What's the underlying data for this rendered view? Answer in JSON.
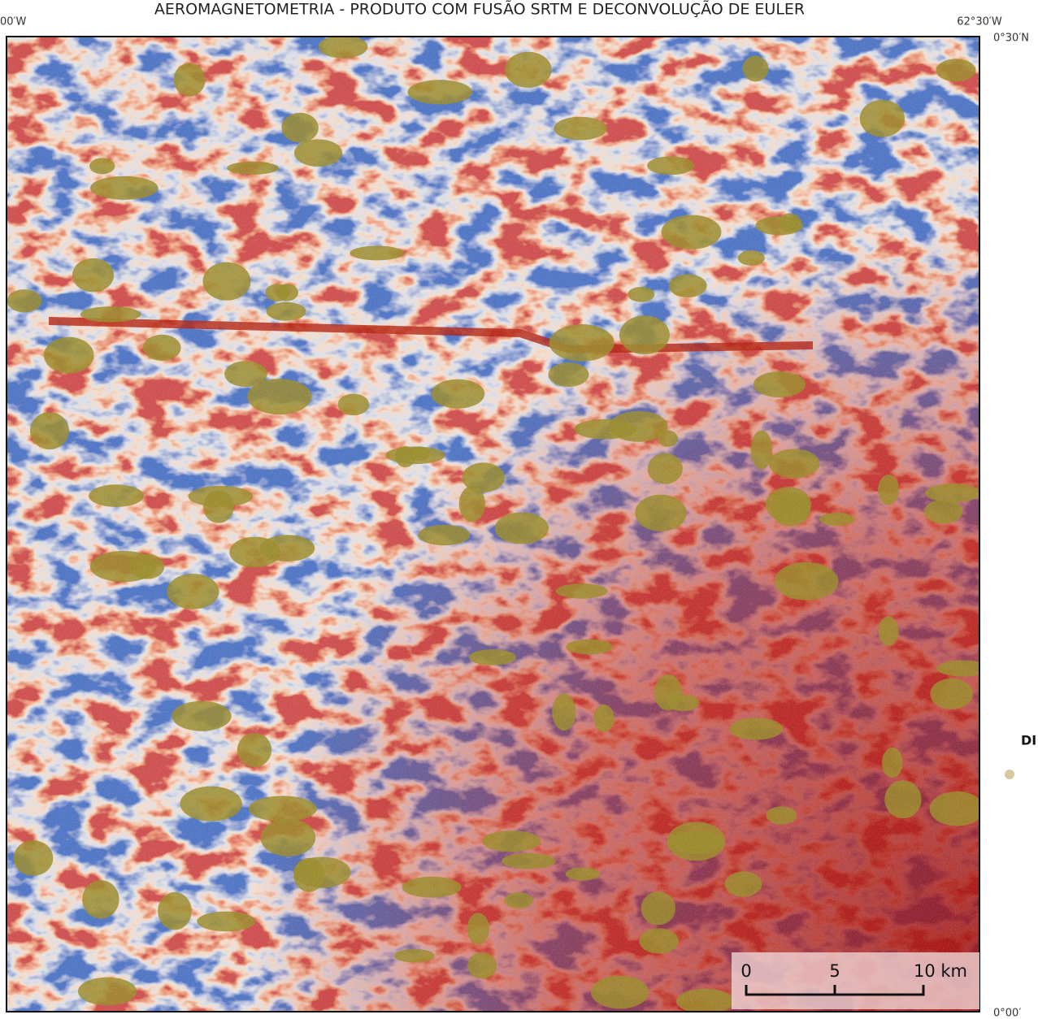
{
  "header": {
    "title": "AEROMAGNETOMETRIA - PRODUTO COM FUSÃO SRTM E DECONVOLUÇÃO DE EULER"
  },
  "map": {
    "labels": {
      "top_left": "00′W",
      "top_right": "62°30′W",
      "right_top": "0°30′N",
      "right_bottom": "0°00′"
    },
    "legend": {
      "title": "DI"
    },
    "scale_bar": {
      "labels": [
        "0",
        "5",
        "10 km"
      ]
    }
  }
}
